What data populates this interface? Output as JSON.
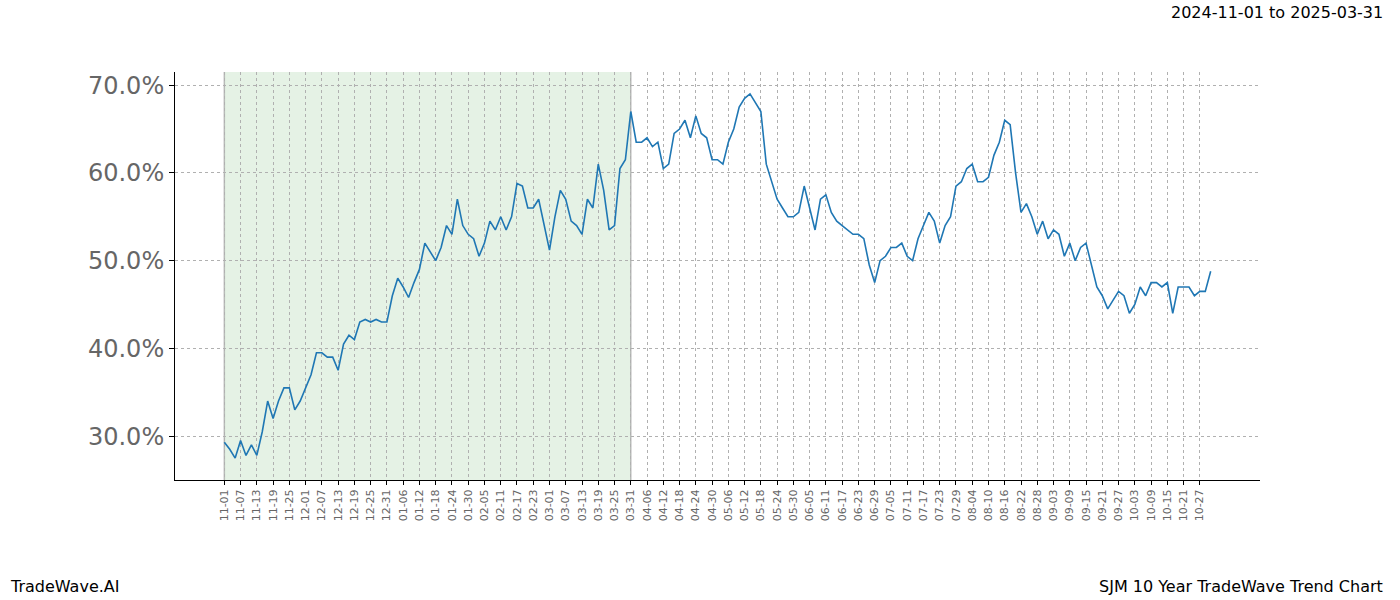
{
  "chart_data": {
    "type": "line",
    "title": "SJM 10 Year TradeWave Trend Chart",
    "subtitle": "2024-11-01 to 2025-03-31",
    "annotations": [
      "TradeWave.AI"
    ],
    "categories": [
      "11-01",
      null,
      null,
      "11-07",
      null,
      null,
      "11-13",
      null,
      null,
      "11-19",
      null,
      null,
      "11-25",
      null,
      null,
      "12-01",
      null,
      null,
      "12-07",
      null,
      null,
      "12-13",
      null,
      null,
      "12-19",
      null,
      null,
      "12-25",
      null,
      null,
      "12-31",
      null,
      null,
      "01-06",
      null,
      null,
      "01-12",
      null,
      null,
      "01-18",
      null,
      null,
      "01-24",
      null,
      null,
      "01-30",
      null,
      null,
      "02-05",
      null,
      null,
      "02-11",
      null,
      null,
      "02-17",
      null,
      null,
      "02-23",
      null,
      null,
      "03-01",
      null,
      null,
      "03-07",
      null,
      null,
      "03-13",
      null,
      null,
      "03-19",
      null,
      null,
      "03-25",
      null,
      null,
      "03-31",
      null,
      null,
      "04-06",
      null,
      null,
      "04-12",
      null,
      null,
      "04-18",
      null,
      null,
      "04-24",
      null,
      null,
      "04-30",
      null,
      null,
      "05-06",
      null,
      null,
      "05-12",
      null,
      null,
      "05-18",
      null,
      null,
      "05-24",
      null,
      null,
      "05-30",
      null,
      null,
      "06-05",
      null,
      null,
      "06-11",
      null,
      null,
      "06-17",
      null,
      null,
      "06-23",
      null,
      null,
      "06-29",
      null,
      null,
      "07-05",
      null,
      null,
      "07-11",
      null,
      null,
      "07-17",
      null,
      null,
      "07-23",
      null,
      null,
      "07-29",
      null,
      null,
      "08-04",
      null,
      null,
      "08-10",
      null,
      null,
      "08-16",
      null,
      null,
      "08-22",
      null,
      null,
      "08-28",
      null,
      null,
      "09-03",
      null,
      null,
      "09-09",
      null,
      null,
      "09-15",
      null,
      null,
      "09-21",
      null,
      null,
      "09-27",
      null,
      null,
      "10-03",
      null,
      null,
      "10-09",
      null,
      null,
      "10-15",
      null,
      null,
      "10-21",
      null,
      null,
      "10-27",
      null,
      null
    ],
    "values": [
      29.3,
      28.5,
      27.5,
      29.5,
      27.8,
      29.0,
      27.8,
      30.5,
      34.0,
      32.0,
      34.0,
      35.5,
      35.5,
      33.0,
      34.0,
      35.5,
      37.0,
      39.5,
      39.5,
      39.0,
      39.0,
      37.5,
      40.5,
      41.5,
      41.0,
      43.0,
      43.3,
      43.0,
      43.3,
      43.0,
      43.0,
      46.0,
      48.0,
      47.0,
      45.8,
      47.5,
      49.0,
      52.0,
      51.0,
      50.0,
      51.5,
      54.0,
      53.0,
      57.0,
      54.0,
      53.0,
      52.5,
      50.5,
      52.0,
      54.5,
      53.5,
      55.0,
      53.5,
      55.0,
      58.8,
      58.5,
      56.0,
      56.0,
      57.0,
      54.0,
      51.2,
      55.0,
      58.0,
      57.0,
      54.5,
      54.0,
      53.0,
      57.0,
      56.0,
      61.0,
      58.0,
      53.5,
      54.0,
      60.5,
      61.5,
      67.0,
      63.5,
      63.5,
      64.0,
      63.0,
      63.5,
      60.5,
      61.0,
      64.5,
      65.0,
      66.0,
      64.0,
      66.5,
      64.5,
      64.0,
      61.5,
      61.5,
      61.0,
      63.5,
      65.0,
      67.5,
      68.5,
      69.0,
      68.0,
      67.0,
      61.0,
      59.0,
      57.0,
      56.0,
      55.0,
      55.0,
      55.5,
      58.5,
      56.0,
      53.5,
      57.0,
      57.5,
      55.5,
      54.5,
      54.0,
      53.5,
      53.0,
      53.0,
      52.5,
      49.5,
      47.5,
      50.0,
      50.5,
      51.5,
      51.5,
      52.0,
      50.5,
      50.0,
      52.5,
      54.0,
      55.5,
      54.5,
      52.0,
      54.0,
      55.0,
      58.5,
      59.0,
      60.5,
      61.0,
      59.0,
      59.0,
      59.5,
      62.0,
      63.5,
      66.0,
      65.5,
      60.0,
      55.5,
      56.5,
      55.0,
      53.0,
      54.5,
      52.5,
      53.5,
      53.0,
      50.5,
      52.0,
      50.0,
      51.5,
      52.0,
      49.5,
      47.0,
      46.0,
      44.5,
      45.5,
      46.5,
      46.0,
      44.0,
      45.0,
      47.0,
      46.0,
      47.5,
      47.5,
      47.0,
      47.5,
      44.0,
      47.0,
      47.0,
      47.0,
      46.0,
      46.5,
      46.5,
      48.8
    ],
    "color": "#1f77b4",
    "shaded_range": [
      "11-01",
      "03-31"
    ],
    "ylim": [
      25.0,
      71.5
    ],
    "yticks": [
      {
        "value": 30,
        "label": "30.0%"
      },
      {
        "value": 40,
        "label": "40.0%"
      },
      {
        "value": 50,
        "label": "50.0%"
      },
      {
        "value": 60,
        "label": "60.0%"
      },
      {
        "value": 70,
        "label": "70.0%"
      }
    ],
    "grid": true
  }
}
